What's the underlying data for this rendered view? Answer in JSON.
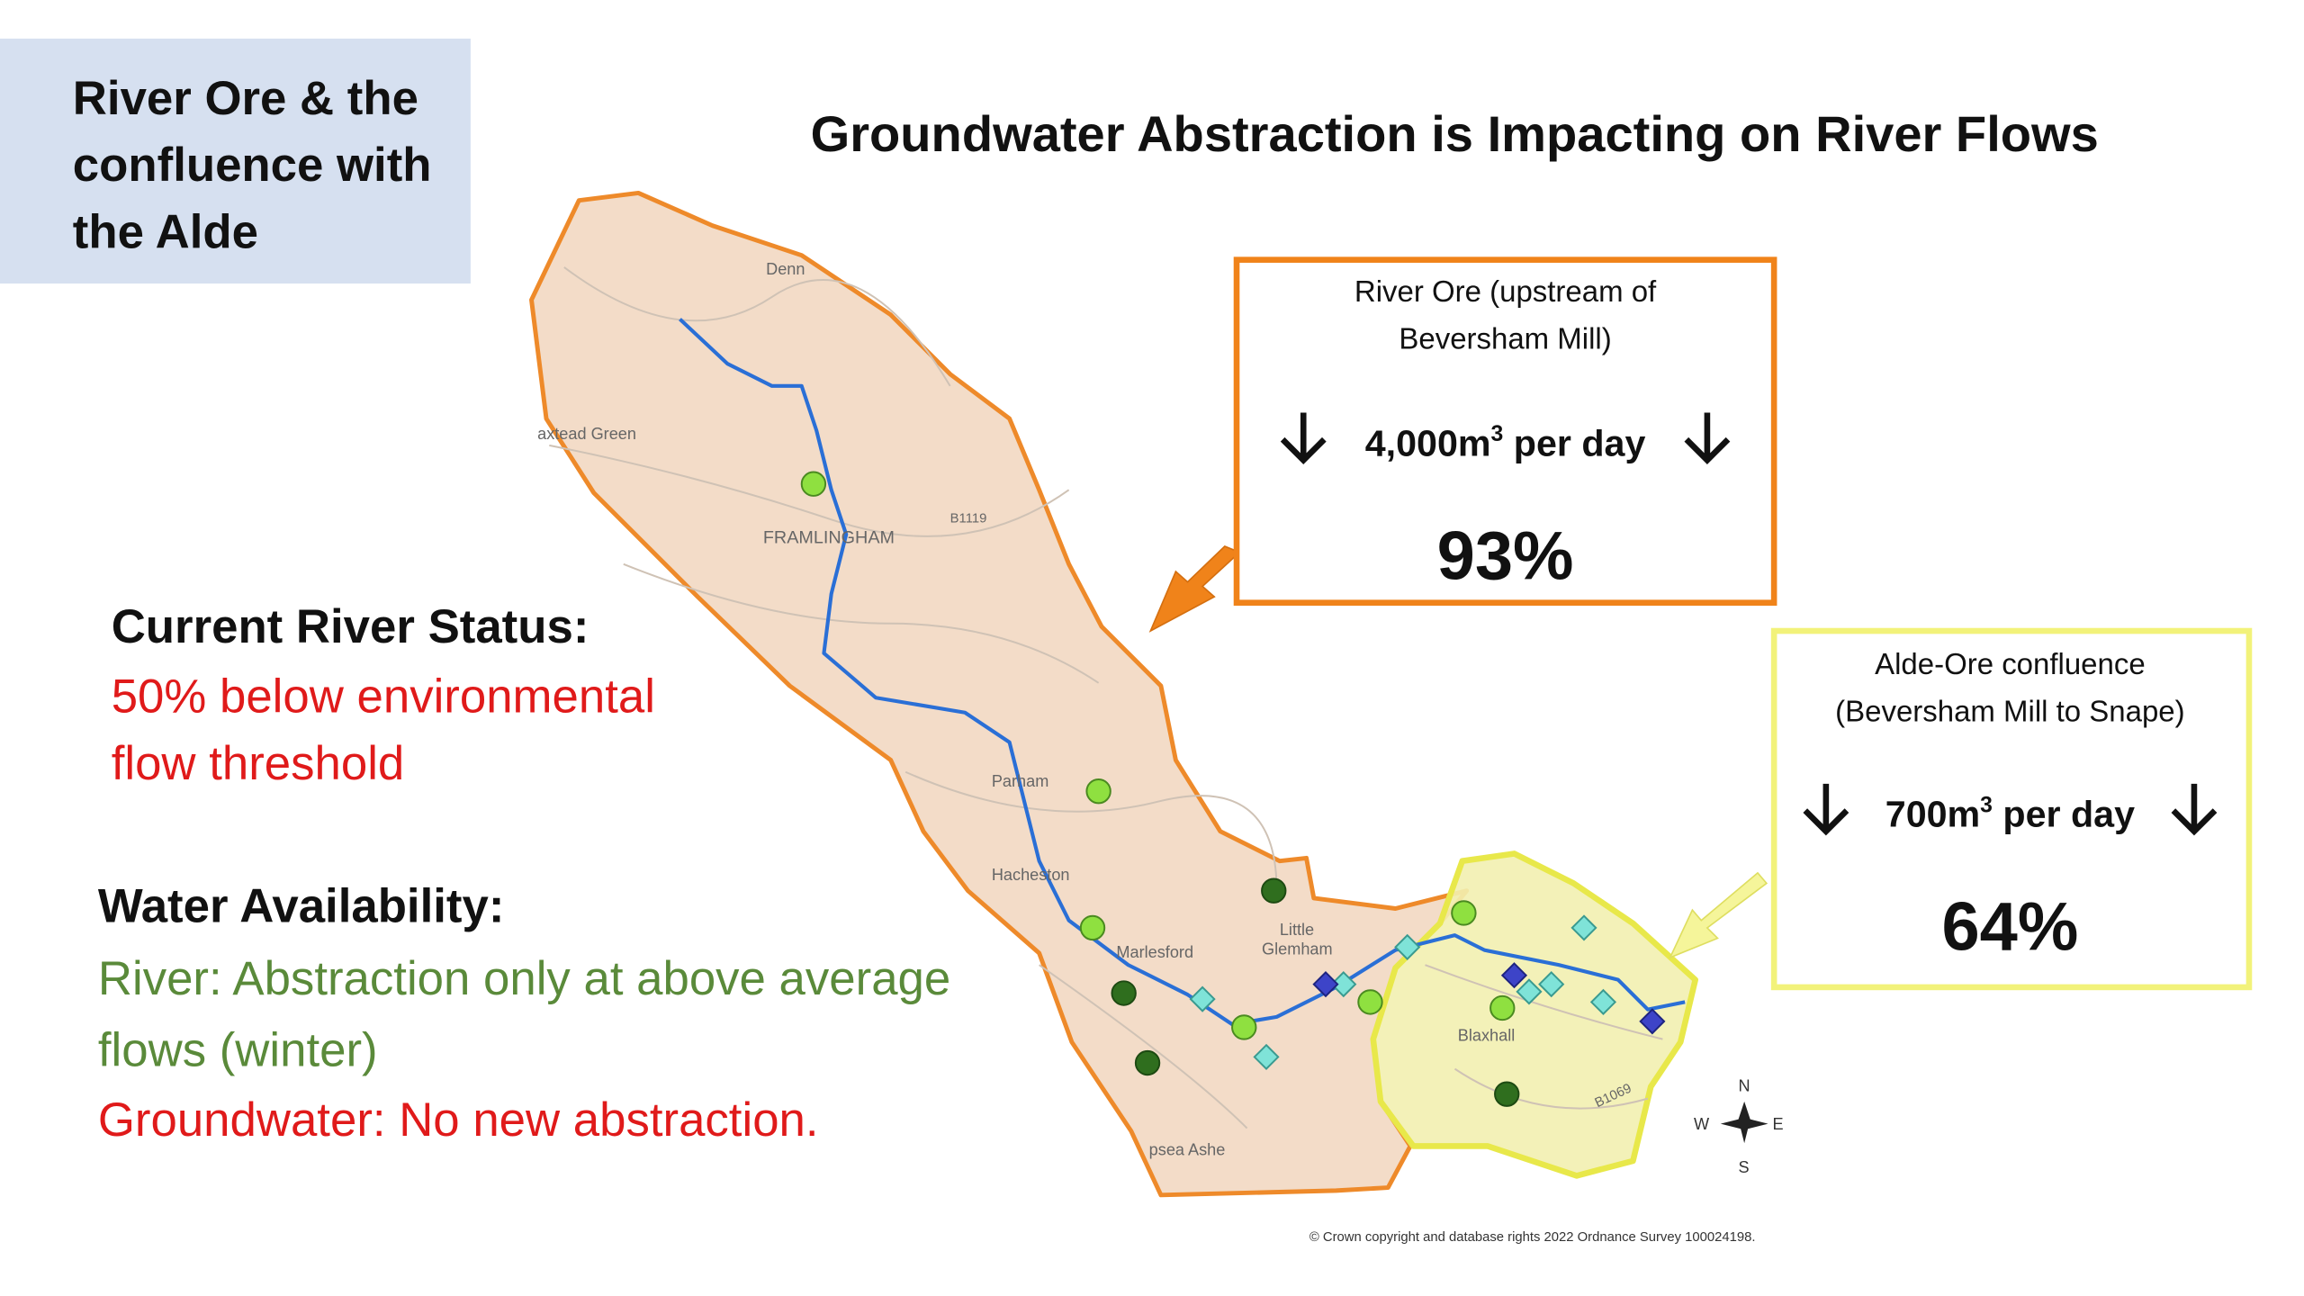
{
  "title_box": {
    "lines": [
      "River Ore & the",
      "confluence with",
      "the Alde"
    ]
  },
  "headline": "Groundwater Abstraction is Impacting on River Flows",
  "status": {
    "heading": "Current River Status:",
    "lines": [
      "50% below environmental",
      "flow threshold"
    ]
  },
  "availability": {
    "heading": "Water Availability:",
    "river_lines": [
      "River: Abstraction only at above average",
      "flows (winter)"
    ],
    "groundwater": "Groundwater: No new abstraction."
  },
  "callouts": [
    {
      "lines": [
        "River Ore (upstream of",
        "Beversham Mill)"
      ],
      "amount": "4,000m",
      "sup": "3",
      "unit": " per day",
      "percent": "93%"
    },
    {
      "lines": [
        "Alde-Ore confluence",
        "(Beversham Mill to Snape)"
      ],
      "amount": "700m",
      "sup": "3",
      "unit": " per day",
      "percent": "64%"
    }
  ],
  "map_labels": [
    "Denn",
    "axtead Green",
    "FRAMLINGHAM",
    "B1119",
    "Parham",
    "Hacheston",
    "Marlesford",
    "Little",
    "Glemham",
    "Blaxhall",
    "B1069",
    "psea Ashe"
  ],
  "compass": [
    "N",
    "E",
    "S",
    "W"
  ],
  "copyright": "© Crown copyright and database rights 2022 Ordnance Survey 100024198."
}
